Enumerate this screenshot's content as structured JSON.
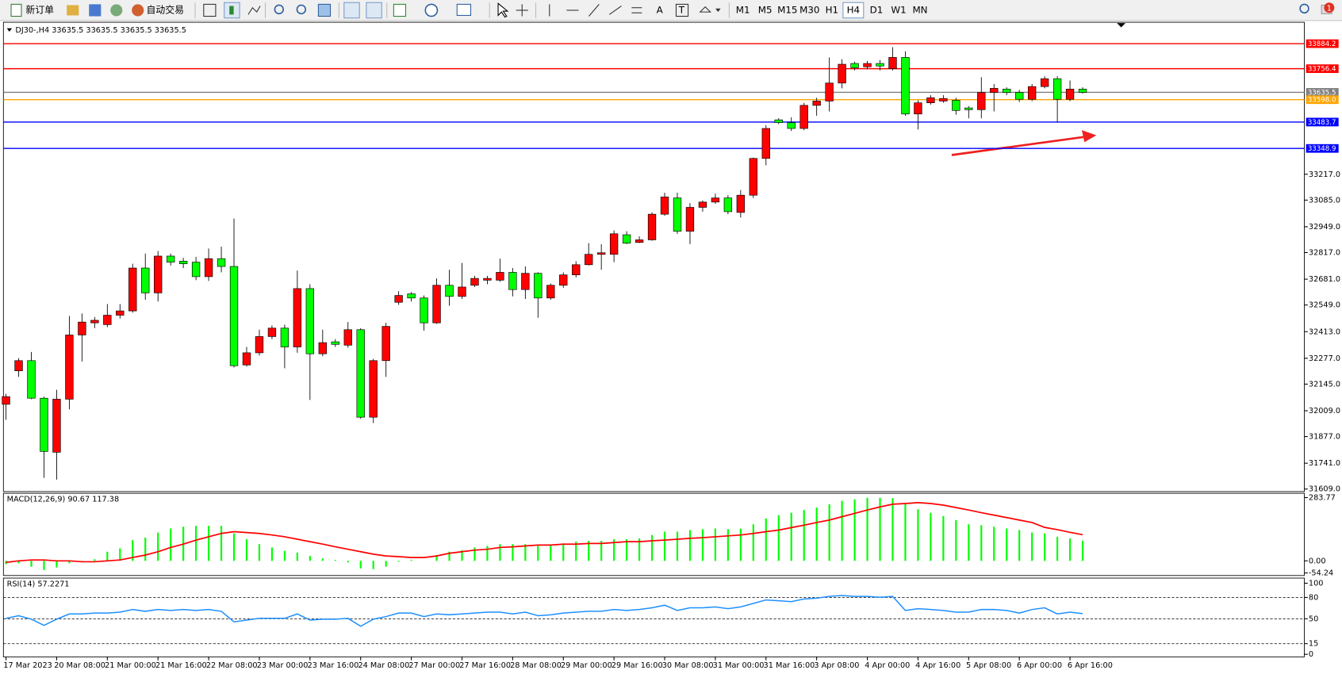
{
  "toolbar": {
    "new_order": "新订单",
    "auto_trading": "自动交易",
    "drawing_text": "A",
    "text_label": "T",
    "timeframes": [
      "M1",
      "M5",
      "M15",
      "M30",
      "H1",
      "H4",
      "D1",
      "W1",
      "MN"
    ],
    "active_timeframe": "H4",
    "notifications": 1
  },
  "chart_data": [
    {
      "type": "candlestick",
      "header": "DJ30-,H4 33635.5 33635.5 33635.5 33635.5",
      "categories": [
        "17 Mar 2023",
        null,
        null,
        null,
        "20 Mar 08:00",
        null,
        null,
        null,
        "21 Mar 00:00",
        null,
        null,
        null,
        "21 Mar 16:00",
        null,
        null,
        null,
        "22 Mar 08:00",
        null,
        null,
        null,
        "23 Mar 00:00",
        null,
        null,
        null,
        "23 Mar 16:00",
        null,
        null,
        null,
        "24 Mar 08:00",
        null,
        null,
        null,
        "27 Mar 00:00",
        null,
        null,
        null,
        "27 Mar 16:00",
        null,
        null,
        null,
        "28 Mar 08:00",
        null,
        null,
        null,
        "29 Mar 00:00",
        null,
        null,
        null,
        "29 Mar 16:00",
        null,
        null,
        null,
        "30 Mar 08:00",
        null,
        null,
        null,
        "31 Mar 00:00",
        null,
        null,
        null,
        "31 Mar 16:00",
        null,
        null,
        null,
        "3 Apr 08:00",
        null,
        null,
        null,
        "4 Apr 00:00",
        null,
        null,
        null,
        "4 Apr 16:00",
        null,
        null,
        null,
        "5 Apr 08:00",
        null,
        null,
        null,
        "6 Apr 00:00",
        null,
        null,
        null,
        "6 Apr 16:00",
        null
      ],
      "open": [
        32042,
        32213,
        32265,
        32073,
        31797,
        32068,
        32396,
        32458,
        32449,
        32497,
        32519,
        32738,
        32611,
        32799,
        32773,
        32768,
        32694,
        32786,
        32746,
        32243,
        32305,
        32388,
        32431,
        32335,
        32633,
        32300,
        32361,
        32344,
        32423,
        31976,
        32265,
        32563,
        32606,
        32585,
        32458,
        32650,
        32593,
        32650,
        32676,
        32676,
        32716,
        32628,
        32711,
        32585,
        32650,
        32703,
        32755,
        32808,
        32808,
        32908,
        32869,
        32882,
        33013,
        33096,
        32926,
        33048,
        33075,
        33096,
        33022,
        33110,
        33298,
        33495,
        33481,
        33451,
        33569,
        33591,
        33683,
        33783,
        33766,
        33783,
        33757,
        33814,
        33525,
        33582,
        33591,
        33595,
        33556,
        33547,
        33635,
        33652,
        33635,
        33600,
        33665,
        33705,
        33600,
        33652
      ],
      "high": [
        32095,
        32278,
        32309,
        32081,
        32116,
        32493,
        32506,
        32488,
        32554,
        32554,
        32760,
        32812,
        32825,
        32812,
        32790,
        32795,
        32838,
        32847,
        32991,
        32335,
        32423,
        32445,
        32449,
        32725,
        32655,
        32423,
        32375,
        32462,
        32431,
        32274,
        32458,
        32620,
        32615,
        32598,
        32685,
        32729,
        32764,
        32698,
        32698,
        32786,
        32738,
        32746,
        32716,
        32659,
        32716,
        32773,
        32865,
        32860,
        32930,
        32926,
        32900,
        33022,
        33123,
        33123,
        33070,
        33083,
        33118,
        33110,
        33136,
        33302,
        33468,
        33503,
        33508,
        33582,
        33608,
        33814,
        33805,
        33792,
        33796,
        33801,
        33866,
        33845,
        33595,
        33621,
        33621,
        33608,
        33565,
        33713,
        33678,
        33661,
        33648,
        33678,
        33718,
        33718,
        33696,
        33661
      ],
      "low": [
        31963,
        32182,
        32068,
        31666,
        31657,
        32016,
        32261,
        32431,
        32436,
        32480,
        32510,
        32576,
        32567,
        32751,
        32738,
        32676,
        32672,
        32716,
        32230,
        32235,
        32291,
        32375,
        32226,
        32305,
        32064,
        32287,
        32335,
        32331,
        31968,
        31946,
        32182,
        32550,
        32567,
        32418,
        32453,
        32545,
        32580,
        32641,
        32655,
        32668,
        32593,
        32580,
        32484,
        32576,
        32637,
        32690,
        32751,
        32729,
        32768,
        32860,
        32865,
        32878,
        33005,
        32913,
        32860,
        33026,
        33066,
        33013,
        32996,
        33096,
        33263,
        33473,
        33438,
        33442,
        33516,
        33538,
        33656,
        33748,
        33753,
        33748,
        33748,
        33516,
        33446,
        33573,
        33582,
        33521,
        33503,
        33503,
        33538,
        33621,
        33586,
        33591,
        33656,
        33481,
        33591,
        33630
      ],
      "close": [
        32081,
        32265,
        32073,
        31801,
        32068,
        32396,
        32462,
        32471,
        32497,
        32519,
        32738,
        32611,
        32799,
        32768,
        32760,
        32694,
        32786,
        32746,
        32239,
        32305,
        32388,
        32431,
        32335,
        32633,
        32300,
        32357,
        32348,
        32423,
        31976,
        32265,
        32440,
        32598,
        32585,
        32458,
        32650,
        32593,
        32641,
        32685,
        32685,
        32716,
        32628,
        32711,
        32585,
        32650,
        32703,
        32755,
        32808,
        32816,
        32913,
        32865,
        32882,
        33013,
        33101,
        32926,
        33048,
        33075,
        33096,
        33026,
        33110,
        33298,
        33451,
        33481,
        33451,
        33569,
        33591,
        33683,
        33779,
        33761,
        33783,
        33770,
        33814,
        33525,
        33582,
        33608,
        33604,
        33543,
        33547,
        33635,
        33656,
        33635,
        33600,
        33665,
        33705,
        33600,
        33652,
        33635.5
      ],
      "up_color": "#ff0000",
      "down_color": "#00ff00",
      "ylim": [
        31596,
        33976
      ],
      "yticks": [
        {
          "value": 33217,
          "label": "33217.0"
        },
        {
          "value": 33085,
          "label": "33085.0"
        },
        {
          "value": 32949,
          "label": "32949.0"
        },
        {
          "value": 32817,
          "label": "32817.0"
        },
        {
          "value": 32681,
          "label": "32681.0"
        },
        {
          "value": 32549,
          "label": "32549.0"
        },
        {
          "value": 32413,
          "label": "32413.0"
        },
        {
          "value": 32277,
          "label": "32277.0"
        },
        {
          "value": 32145,
          "label": "32145.0"
        },
        {
          "value": 32009,
          "label": "32009.0"
        },
        {
          "value": 31877,
          "label": "31877.0"
        },
        {
          "value": 31741,
          "label": "31741.0"
        },
        {
          "value": 31609,
          "label": "31609.0"
        }
      ],
      "levels": [
        {
          "value": 33884.2,
          "color": "#ff0000"
        },
        {
          "value": 33756.4,
          "color": "#ff0000"
        },
        {
          "value": 33635.5,
          "color": "#808080"
        },
        {
          "value": 33598,
          "label": "33598.0",
          "color": "#ffa500"
        },
        {
          "value": 33483.7,
          "color": "#0000ff"
        },
        {
          "value": 33348.9,
          "color": "#0000ff"
        }
      ]
    },
    {
      "type": "macd",
      "label": "MACD(12,26,9) 90.67 117.38",
      "histogram": [
        -15,
        -11,
        -26,
        -41,
        -30,
        -11,
        -4,
        7,
        41,
        56,
        93,
        104,
        127,
        145,
        153,
        157,
        157,
        157,
        123,
        97,
        75,
        60,
        45,
        37,
        22,
        11,
        4,
        -7,
        -34,
        -37,
        -26,
        -4,
        4,
        0,
        26,
        41,
        48,
        60,
        67,
        75,
        75,
        75,
        67,
        71,
        78,
        86,
        90,
        90,
        97,
        97,
        101,
        116,
        131,
        131,
        138,
        142,
        145,
        142,
        145,
        164,
        190,
        205,
        216,
        228,
        239,
        254,
        269,
        276,
        283,
        283,
        281,
        254,
        231,
        216,
        201,
        183,
        164,
        160,
        153,
        145,
        138,
        127,
        123,
        108,
        100,
        90.67
      ],
      "signal": [
        -7,
        0,
        4,
        4,
        0,
        0,
        -4,
        -4,
        0,
        4,
        15,
        26,
        41,
        60,
        75,
        93,
        108,
        123,
        131,
        127,
        123,
        116,
        108,
        97,
        86,
        75,
        63,
        52,
        41,
        30,
        22,
        19,
        15,
        15,
        22,
        34,
        41,
        48,
        52,
        60,
        63,
        67,
        71,
        71,
        75,
        75,
        78,
        78,
        82,
        86,
        86,
        90,
        93,
        97,
        101,
        104,
        108,
        112,
        116,
        123,
        131,
        138,
        149,
        160,
        172,
        183,
        198,
        213,
        228,
        242,
        254,
        257,
        261,
        257,
        250,
        239,
        228,
        216,
        205,
        194,
        183,
        172,
        150,
        140,
        128,
        117.38
      ],
      "histogram_color": "#00ff00",
      "signal_color": "#ff0000",
      "ylim": [
        -54.24,
        283.77
      ],
      "yticks": [
        283.77,
        {
          "value": 0,
          "label": "0.00"
        },
        -54.24
      ]
    },
    {
      "type": "rsi",
      "label": "RSI(14) 57.2271",
      "values": [
        50.6,
        54.3,
        49.4,
        40.7,
        49.4,
        56.8,
        56.8,
        58.0,
        58.0,
        59.3,
        63.0,
        60.5,
        63.0,
        61.7,
        63.0,
        61.7,
        63.0,
        60.5,
        45.7,
        48.1,
        50.6,
        50.6,
        50.6,
        56.8,
        48.1,
        49.4,
        49.4,
        50.6,
        39.5,
        49.4,
        53.1,
        58.0,
        58.0,
        53.1,
        56.8,
        55.6,
        56.8,
        58.0,
        59.3,
        59.3,
        56.8,
        59.3,
        54.3,
        55.6,
        58.0,
        59.3,
        60.5,
        60.5,
        63.0,
        61.7,
        63.0,
        65.4,
        69.1,
        61.7,
        65.4,
        65.4,
        66.7,
        64.2,
        66.7,
        71.6,
        76.5,
        75.3,
        74.1,
        77.8,
        79.0,
        81.5,
        82.7,
        81.5,
        81.5,
        80.2,
        81.5,
        61.7,
        64.2,
        63.0,
        61.7,
        59.3,
        59.3,
        63.0,
        63.0,
        61.7,
        58.0,
        63.0,
        65.4,
        56.8,
        59.3,
        57.2271
      ],
      "color": "#1e90ff",
      "ylim": [
        0,
        100
      ],
      "yticks": [
        100,
        80,
        50,
        15,
        0
      ],
      "levels": [
        80,
        50,
        15
      ]
    }
  ]
}
